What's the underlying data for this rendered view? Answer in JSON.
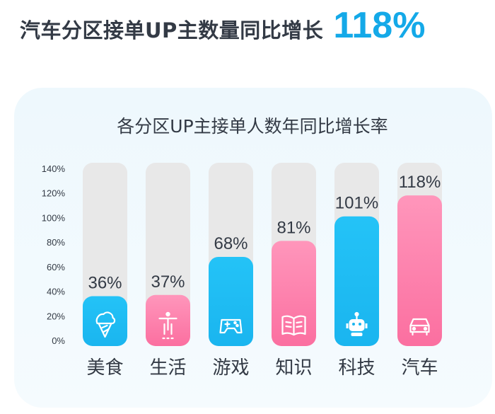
{
  "headline": {
    "text": "汽车分区接单UP主数量同比增长",
    "value": "118%"
  },
  "colors": {
    "headline_value": "#14a9e8",
    "blue_bar": "#1ab5ef",
    "pink_bar": "#fb6fa0",
    "track": "#e8e8e8",
    "text": "#333a45"
  },
  "chart_data": {
    "type": "bar",
    "title": "各分区UP主接单人数年同比增长率",
    "categories": [
      "美食",
      "生活",
      "游戏",
      "知识",
      "科技",
      "汽车"
    ],
    "values": [
      36,
      37,
      68,
      81,
      101,
      118
    ],
    "value_labels": [
      "36%",
      "37%",
      "68%",
      "81%",
      "101%",
      "118%"
    ],
    "bar_colors": [
      "blue",
      "pink",
      "blue",
      "pink",
      "blue",
      "pink"
    ],
    "icons": [
      "ice-cream-icon",
      "person-icon",
      "gamepad-icon",
      "book-icon",
      "robot-icon",
      "car-icon"
    ],
    "ylim": [
      0,
      140
    ],
    "yticks": [
      "0%",
      "20%",
      "40%",
      "60%",
      "80%",
      "100%",
      "120%",
      "140%"
    ],
    "grid": false,
    "xlabel": "",
    "ylabel": ""
  }
}
